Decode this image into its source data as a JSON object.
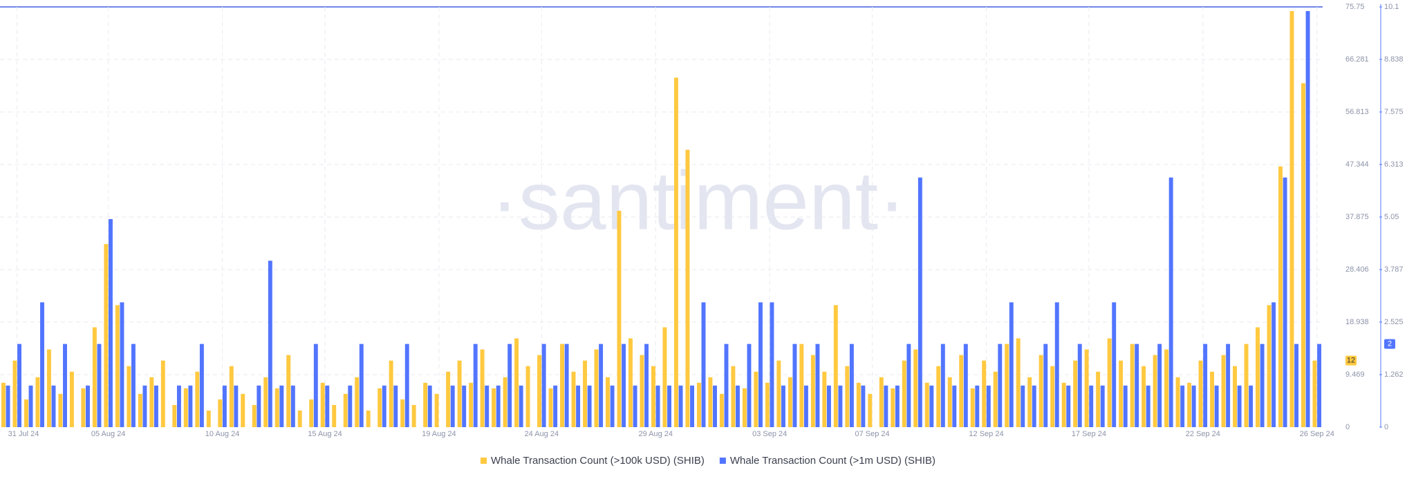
{
  "watermark": "·santiment·",
  "chart_data": {
    "type": "bar",
    "categories": [
      null,
      "31 Jul 24",
      null,
      null,
      null,
      null,
      null,
      null,
      null,
      "05 Aug 24",
      null,
      null,
      null,
      null,
      null,
      null,
      null,
      null,
      null,
      "10 Aug 24",
      null,
      null,
      null,
      null,
      null,
      null,
      null,
      null,
      "15 Aug 24",
      null,
      null,
      null,
      null,
      null,
      null,
      null,
      null,
      null,
      "19 Aug 24",
      null,
      null,
      null,
      null,
      null,
      null,
      null,
      null,
      "24 Aug 24",
      null,
      null,
      null,
      null,
      null,
      null,
      null,
      null,
      null,
      "29 Aug 24",
      null,
      null,
      null,
      null,
      null,
      null,
      null,
      null,
      null,
      "03 Sep 24",
      null,
      null,
      null,
      null,
      null,
      null,
      null,
      null,
      "07 Sep 24",
      null,
      null,
      null,
      null,
      null,
      null,
      null,
      null,
      null,
      "12 Sep 24",
      null,
      null,
      null,
      null,
      null,
      null,
      null,
      null,
      "17 Sep 24",
      null,
      null,
      null,
      null,
      null,
      null,
      null,
      null,
      null,
      "22 Sep 24",
      null,
      null,
      null,
      null,
      null,
      null,
      null,
      null,
      null,
      "26 Sep 24"
    ],
    "series": [
      {
        "name": "Whale Transaction Count (>100k USD) (SHIB)",
        "color": "#ffc940",
        "axis": "y",
        "values": [
          8,
          12,
          5,
          9,
          14,
          6,
          10,
          7,
          18,
          33,
          22,
          11,
          6,
          9,
          12,
          4,
          7,
          10,
          3,
          5,
          11,
          6,
          4,
          9,
          7,
          13,
          3,
          5,
          8,
          4,
          6,
          9,
          3,
          7,
          12,
          5,
          4,
          8,
          6,
          10,
          12,
          8,
          14,
          7,
          9,
          16,
          11,
          13,
          7,
          15,
          10,
          12,
          14,
          9,
          39,
          16,
          13,
          11,
          18,
          63,
          50,
          8,
          9,
          6,
          11,
          7,
          10,
          8,
          12,
          9,
          15,
          13,
          10,
          22,
          11,
          8,
          6,
          9,
          7,
          12,
          14,
          8,
          11,
          9,
          13,
          7,
          12,
          10,
          15,
          16,
          9,
          13,
          11,
          8,
          12,
          14,
          10,
          16,
          12,
          15,
          11,
          13,
          14,
          9,
          8,
          12,
          10,
          13,
          11,
          15,
          18,
          22,
          47,
          75,
          62,
          12
        ]
      },
      {
        "name": "Whale Transaction Count (>1m USD) (SHIB)",
        "color": "#5275ff",
        "axis": "y2",
        "values": [
          1,
          2,
          1,
          3,
          1,
          2,
          0,
          1,
          2,
          5,
          3,
          2,
          1,
          1,
          0,
          1,
          1,
          2,
          0,
          1,
          1,
          0,
          1,
          4,
          1,
          1,
          0,
          2,
          1,
          0,
          1,
          2,
          0,
          1,
          1,
          2,
          0,
          1,
          0,
          1,
          1,
          2,
          1,
          1,
          2,
          1,
          0,
          2,
          1,
          2,
          1,
          1,
          2,
          1,
          2,
          1,
          2,
          1,
          1,
          1,
          1,
          3,
          1,
          2,
          1,
          2,
          3,
          3,
          1,
          2,
          1,
          2,
          1,
          1,
          2,
          1,
          0,
          1,
          1,
          2,
          6,
          1,
          2,
          1,
          2,
          1,
          1,
          2,
          3,
          1,
          1,
          2,
          3,
          1,
          2,
          1,
          1,
          3,
          1,
          2,
          1,
          2,
          6,
          1,
          1,
          2,
          1,
          2,
          1,
          1,
          2,
          3,
          6,
          2,
          10,
          2
        ]
      }
    ],
    "ylim": [
      0,
      75.75
    ],
    "yticks": [
      0,
      9.469,
      18.938,
      28.406,
      37.875,
      47.344,
      56.813,
      66.281,
      75.75
    ],
    "y2lim": [
      0,
      10.1
    ],
    "y2ticks": [
      0,
      1.262,
      2.525,
      3.787,
      5.05,
      6.313,
      7.575,
      8.838,
      10.1
    ],
    "grid": true
  }
}
